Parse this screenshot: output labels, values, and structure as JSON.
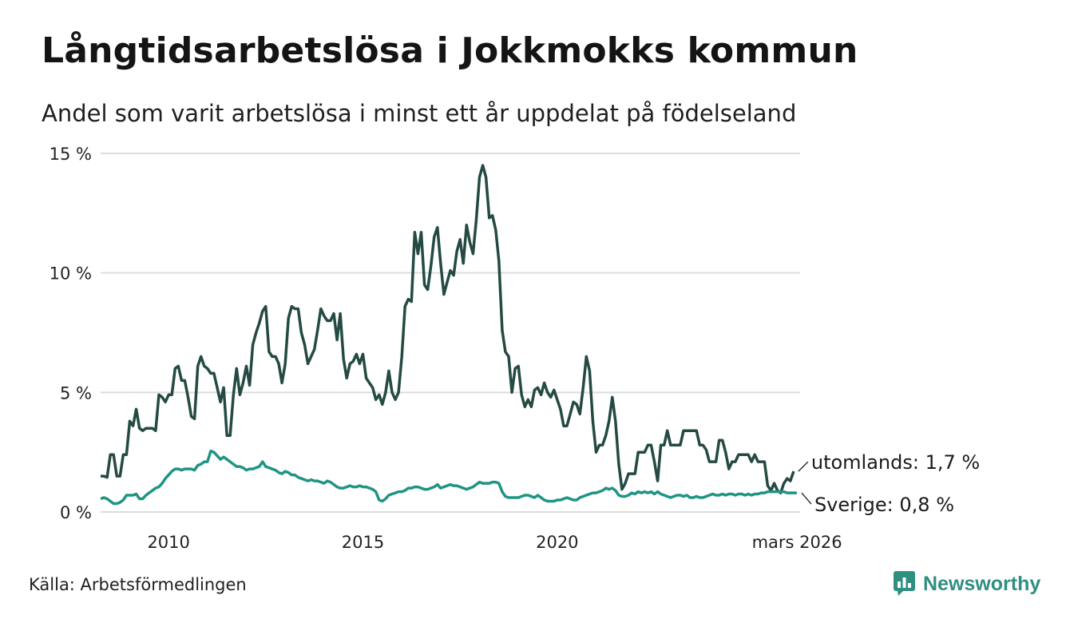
{
  "title": "Långtidsarbetslösa i Jokkmokks kommun",
  "subtitle": "Andel som varit arbetslösa i minst ett år uppdelat på födelseland",
  "source": "Källa: Arbetsförmedlingen",
  "brand": {
    "name": "Newsworthy",
    "icon": "newsworthy-logo-icon"
  },
  "colors": {
    "utomlands": "#244a43",
    "sverige": "#1f9483",
    "grid": "#dddddd",
    "brand": "#2f8f80"
  },
  "chart_data": {
    "type": "line",
    "title": "Långtidsarbetslösa i Jokkmokks kommun",
    "xlabel": "",
    "ylabel": "",
    "x_start": 2008.25,
    "x_step": 0.083333,
    "xlim": [
      2008.25,
      2026.25
    ],
    "ylim": [
      0,
      15
    ],
    "yticks": [
      {
        "value": 0,
        "label": "0 %"
      },
      {
        "value": 5,
        "label": "5 %"
      },
      {
        "value": 10,
        "label": "10 %"
      },
      {
        "value": 15,
        "label": "15 %"
      }
    ],
    "xticks": [
      {
        "value": 2010,
        "label": "2010"
      },
      {
        "value": 2015,
        "label": "2015"
      },
      {
        "value": 2020,
        "label": "2020"
      },
      {
        "value": 2026.17,
        "label": "mars 2026"
      }
    ],
    "series": [
      {
        "name": "utomlands",
        "end_label": "utomlands: 1,7 %",
        "values": [
          1.5,
          1.5,
          1.45,
          2.4,
          2.4,
          1.5,
          1.5,
          2.4,
          2.4,
          3.8,
          3.6,
          4.3,
          3.5,
          3.4,
          3.5,
          3.5,
          3.5,
          3.4,
          4.9,
          4.8,
          4.6,
          4.9,
          4.9,
          6.0,
          6.1,
          5.5,
          5.5,
          4.8,
          4.0,
          3.9,
          6.1,
          6.5,
          6.1,
          6.0,
          5.8,
          5.8,
          5.2,
          4.6,
          5.2,
          3.2,
          3.2,
          4.9,
          6.0,
          4.9,
          5.4,
          6.1,
          5.3,
          7.0,
          7.5,
          7.9,
          8.4,
          8.6,
          6.7,
          6.5,
          6.5,
          6.2,
          5.4,
          6.2,
          8.1,
          8.6,
          8.5,
          8.5,
          7.5,
          7.0,
          6.2,
          6.5,
          6.8,
          7.6,
          8.5,
          8.2,
          8.0,
          8.0,
          8.3,
          7.2,
          8.3,
          6.4,
          5.6,
          6.2,
          6.3,
          6.6,
          6.2,
          6.6,
          5.6,
          5.4,
          5.2,
          4.7,
          4.9,
          4.5,
          5.0,
          5.9,
          5.0,
          4.7,
          5.0,
          6.5,
          8.6,
          8.9,
          8.8,
          11.7,
          10.8,
          11.7,
          9.5,
          9.3,
          10.3,
          11.5,
          11.9,
          10.4,
          9.1,
          9.6,
          10.1,
          9.9,
          10.9,
          11.4,
          10.4,
          12.0,
          11.3,
          10.8,
          12.2,
          14.0,
          14.5,
          14.0,
          12.3,
          12.4,
          11.8,
          10.5,
          7.6,
          6.7,
          6.5,
          5.0,
          6.0,
          6.1,
          4.9,
          4.4,
          4.7,
          4.4,
          5.1,
          5.2,
          4.9,
          5.4,
          5.0,
          4.8,
          5.1,
          4.7,
          4.3,
          3.6,
          3.6,
          4.1,
          4.6,
          4.5,
          4.1,
          5.2,
          6.5,
          5.9,
          3.8,
          2.5,
          2.8,
          2.8,
          3.2,
          3.8,
          4.8,
          3.8,
          2.0,
          0.95,
          1.2,
          1.6,
          1.6,
          1.6,
          2.5,
          2.5,
          2.5,
          2.8,
          2.8,
          2.1,
          1.3,
          2.8,
          2.8,
          3.4,
          2.8,
          2.8,
          2.8,
          2.8,
          3.4,
          3.4,
          3.4,
          3.4,
          3.4,
          2.8,
          2.8,
          2.6,
          2.1,
          2.1,
          2.1,
          3.0,
          3.0,
          2.5,
          1.8,
          2.1,
          2.1,
          2.4,
          2.4,
          2.4,
          2.4,
          2.1,
          2.4,
          2.1,
          2.1,
          2.1,
          1.1,
          0.9,
          1.2,
          0.9,
          0.8,
          1.2,
          1.4,
          1.3,
          1.7
        ]
      },
      {
        "name": "Sverige",
        "end_label": "Sverige: 0,8 %",
        "values": [
          0.55,
          0.6,
          0.55,
          0.45,
          0.35,
          0.35,
          0.4,
          0.5,
          0.7,
          0.7,
          0.7,
          0.75,
          0.55,
          0.55,
          0.7,
          0.8,
          0.9,
          1.0,
          1.05,
          1.2,
          1.4,
          1.55,
          1.7,
          1.8,
          1.8,
          1.75,
          1.8,
          1.8,
          1.8,
          1.75,
          1.95,
          2.0,
          2.1,
          2.1,
          2.55,
          2.5,
          2.35,
          2.2,
          2.3,
          2.2,
          2.1,
          2.0,
          1.9,
          1.9,
          1.85,
          1.75,
          1.8,
          1.8,
          1.85,
          1.9,
          2.1,
          1.9,
          1.85,
          1.8,
          1.75,
          1.65,
          1.6,
          1.7,
          1.65,
          1.55,
          1.55,
          1.45,
          1.4,
          1.35,
          1.3,
          1.35,
          1.3,
          1.3,
          1.25,
          1.2,
          1.3,
          1.25,
          1.15,
          1.05,
          1.0,
          1.0,
          1.05,
          1.1,
          1.05,
          1.05,
          1.1,
          1.05,
          1.05,
          1.0,
          0.95,
          0.85,
          0.5,
          0.45,
          0.55,
          0.7,
          0.75,
          0.8,
          0.85,
          0.85,
          0.9,
          1.0,
          1.0,
          1.05,
          1.05,
          1.0,
          0.95,
          0.95,
          1.0,
          1.05,
          1.15,
          1.0,
          1.05,
          1.1,
          1.15,
          1.1,
          1.1,
          1.05,
          1.0,
          0.95,
          1.0,
          1.05,
          1.15,
          1.25,
          1.2,
          1.2,
          1.2,
          1.25,
          1.25,
          1.2,
          0.85,
          0.65,
          0.6,
          0.6,
          0.6,
          0.6,
          0.65,
          0.7,
          0.7,
          0.65,
          0.6,
          0.7,
          0.6,
          0.5,
          0.45,
          0.45,
          0.45,
          0.5,
          0.5,
          0.55,
          0.6,
          0.55,
          0.5,
          0.5,
          0.6,
          0.65,
          0.7,
          0.75,
          0.8,
          0.8,
          0.85,
          0.9,
          1.0,
          0.95,
          1.0,
          0.9,
          0.7,
          0.65,
          0.65,
          0.7,
          0.8,
          0.75,
          0.85,
          0.8,
          0.85,
          0.8,
          0.85,
          0.75,
          0.85,
          0.75,
          0.7,
          0.65,
          0.6,
          0.65,
          0.7,
          0.7,
          0.65,
          0.7,
          0.6,
          0.6,
          0.65,
          0.6,
          0.6,
          0.65,
          0.7,
          0.75,
          0.7,
          0.7,
          0.75,
          0.7,
          0.75,
          0.75,
          0.7,
          0.75,
          0.75,
          0.7,
          0.75,
          0.7,
          0.75,
          0.75,
          0.8,
          0.8,
          0.85,
          0.85,
          0.85,
          0.85,
          0.85,
          0.85,
          0.8,
          0.8,
          0.8,
          0.8
        ]
      }
    ]
  }
}
